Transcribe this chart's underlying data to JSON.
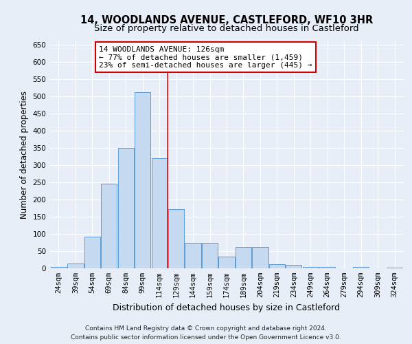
{
  "title": "14, WOODLANDS AVENUE, CASTLEFORD, WF10 3HR",
  "subtitle": "Size of property relative to detached houses in Castleford",
  "xlabel": "Distribution of detached houses by size in Castleford",
  "ylabel": "Number of detached properties",
  "categories": [
    "24sqm",
    "39sqm",
    "54sqm",
    "69sqm",
    "84sqm",
    "99sqm",
    "114sqm",
    "129sqm",
    "144sqm",
    "159sqm",
    "174sqm",
    "189sqm",
    "204sqm",
    "219sqm",
    "234sqm",
    "249sqm",
    "264sqm",
    "279sqm",
    "294sqm",
    "309sqm",
    "324sqm"
  ],
  "values": [
    5,
    15,
    92,
    247,
    350,
    512,
    320,
    172,
    75,
    75,
    35,
    63,
    63,
    12,
    10,
    5,
    4,
    0,
    5,
    0,
    3
  ],
  "bar_color": "#c5d9f0",
  "bar_edge_color": "#5b9bd5",
  "vline_color": "red",
  "annotation_title": "14 WOODLANDS AVENUE: 126sqm",
  "annotation_line1": "← 77% of detached houses are smaller (1,459)",
  "annotation_line2": "23% of semi-detached houses are larger (445) →",
  "annotation_box_color": "white",
  "annotation_box_edge_color": "#cc0000",
  "background_color": "#e8eef8",
  "grid_color": "#ffffff",
  "ylim": [
    0,
    660
  ],
  "yticks": [
    0,
    50,
    100,
    150,
    200,
    250,
    300,
    350,
    400,
    450,
    500,
    550,
    600,
    650
  ],
  "footer_line1": "Contains HM Land Registry data © Crown copyright and database right 2024.",
  "footer_line2": "Contains public sector information licensed under the Open Government Licence v3.0.",
  "title_fontsize": 10.5,
  "subtitle_fontsize": 9.5,
  "xlabel_fontsize": 9,
  "ylabel_fontsize": 8.5,
  "tick_fontsize": 7.5,
  "annotation_fontsize": 8,
  "footer_fontsize": 6.5
}
